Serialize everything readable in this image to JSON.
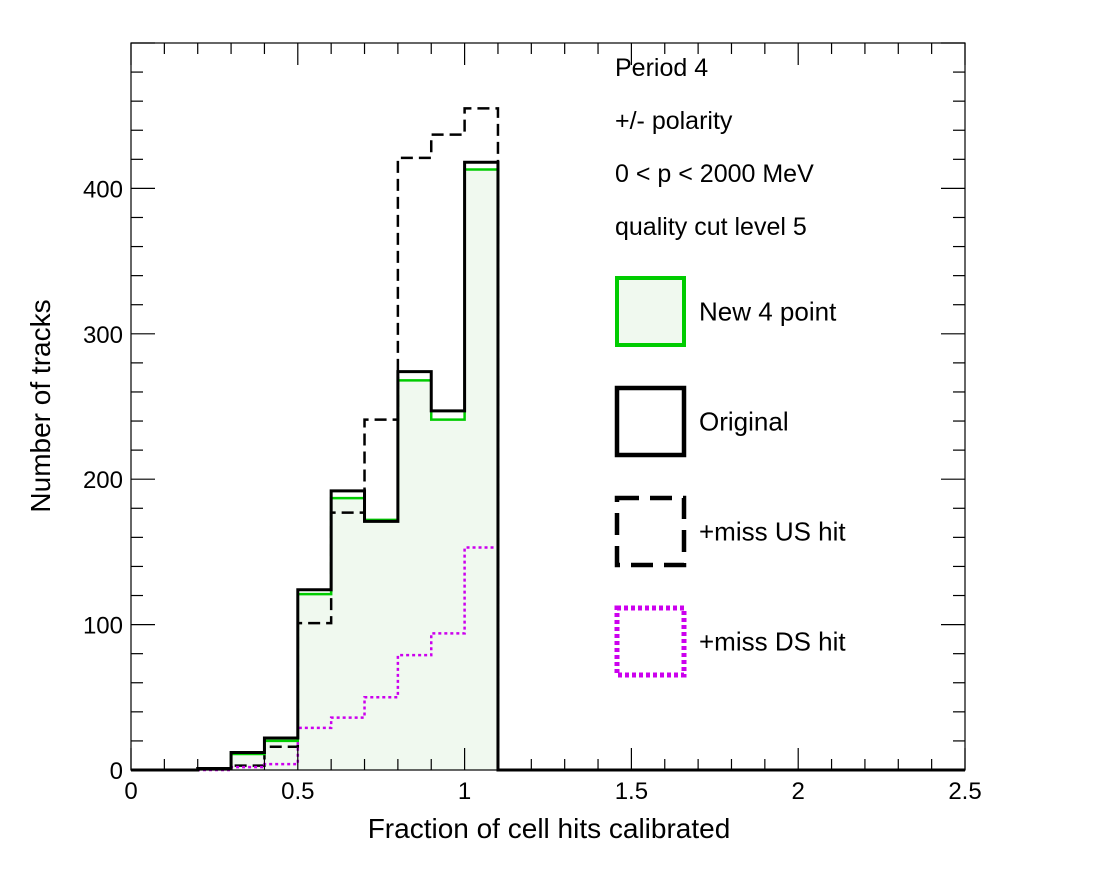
{
  "chart_data": {
    "type": "histogram",
    "xlabel": "Fraction of cell hits calibrated",
    "ylabel": "Number of tracks",
    "xlim": [
      0,
      2.5
    ],
    "ylim": [
      0,
      500
    ],
    "xticks": [
      "0",
      "0.5",
      "1",
      "1.5",
      "2",
      "2.5"
    ],
    "yticks": [
      "0",
      "100",
      "200",
      "300",
      "400"
    ],
    "bin_edges": [
      0.0,
      0.1,
      0.2,
      0.3,
      0.4,
      0.5,
      0.6,
      0.7,
      0.8,
      0.9,
      1.0,
      1.1,
      1.2,
      1.3,
      1.4,
      1.5,
      1.6,
      1.7,
      1.8,
      1.9,
      2.0,
      2.1,
      2.2,
      2.3,
      2.4,
      2.5
    ],
    "info_lines": [
      "Period 4",
      "+/- polarity",
      "0 < p < 2000 MeV",
      "quality cut level 5"
    ],
    "legend_position": "top-right",
    "grid": false,
    "series": [
      {
        "name": "New 4 point",
        "style": "solid-filled",
        "color": "#00cc00",
        "fill": "#f0f9ef",
        "values": [
          0,
          0,
          1,
          11,
          20,
          121,
          187,
          172,
          268,
          241,
          413,
          0,
          0,
          0,
          0,
          0,
          0,
          0,
          0,
          0,
          0,
          0,
          0,
          0,
          0
        ]
      },
      {
        "name": "Original",
        "style": "solid",
        "color": "#000000",
        "values": [
          0,
          0,
          1,
          12,
          22,
          124,
          192,
          171,
          274,
          247,
          418,
          0,
          0,
          0,
          0,
          0,
          0,
          0,
          0,
          0,
          0,
          0,
          0,
          0,
          0
        ]
      },
      {
        "name": "+miss US hit",
        "style": "dashed",
        "color": "#000000",
        "values": [
          0,
          0,
          1,
          3,
          16,
          101,
          177,
          241,
          421,
          437,
          455,
          0,
          0,
          0,
          0,
          0,
          0,
          0,
          0,
          0,
          0,
          0,
          0,
          0,
          0
        ]
      },
      {
        "name": "+miss DS hit",
        "style": "dotted",
        "color": "#cc00ee",
        "values": [
          0,
          0,
          0,
          2,
          4,
          29,
          36,
          50,
          79,
          94,
          153,
          0,
          0,
          0,
          0,
          0,
          0,
          0,
          0,
          0,
          0,
          0,
          0,
          0,
          0
        ]
      }
    ]
  }
}
